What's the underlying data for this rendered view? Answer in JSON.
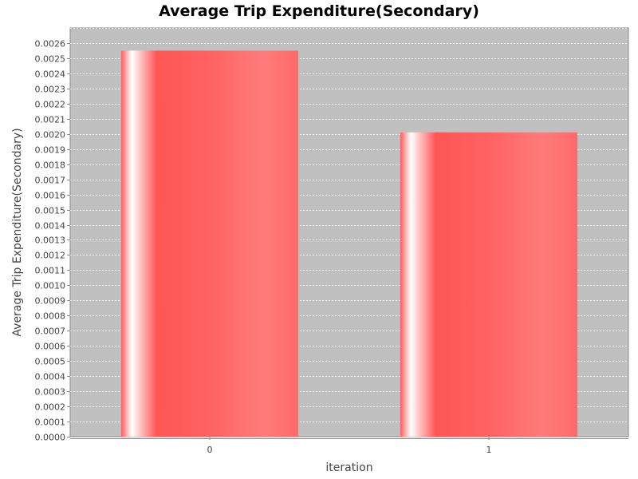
{
  "chart_data": {
    "type": "bar",
    "title": "Average Trip Expenditure(Secondary)",
    "xlabel": "iteration",
    "ylabel": "Average Trip Expenditure(Secondary)",
    "categories": [
      "0",
      "1"
    ],
    "values": [
      0.00255,
      0.00201
    ],
    "ylim": [
      0,
      0.0027
    ],
    "ytick_step": 0.0001,
    "ytick_decimals": 4,
    "grid": true,
    "legend": "none",
    "colors": {
      "plot_background": "#c0c0c0",
      "bar": "#ff5555",
      "bar_highlight": "#ffffff",
      "gridline": "#ffffff",
      "axis": "#888888"
    }
  }
}
